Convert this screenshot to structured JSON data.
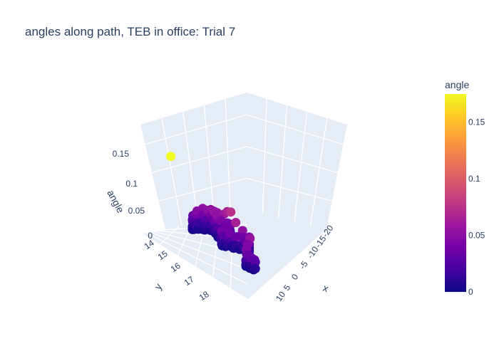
{
  "chart_data": {
    "type": "scatter3d",
    "title": "angles along path, TEB in office: Trial 7",
    "axes": {
      "x": {
        "label": "x",
        "ticks": [
          "-20",
          "-15",
          "-10",
          "-5",
          "0",
          "5",
          "10"
        ]
      },
      "y": {
        "label": "y",
        "ticks": [
          "14",
          "15",
          "16",
          "17",
          "18"
        ]
      },
      "z": {
        "label": "angle",
        "ticks": [
          "0",
          "0.05",
          "0.1",
          "0.15"
        ]
      }
    },
    "colorbar": {
      "title": "angle",
      "ticks": [
        "0",
        "0.05",
        "0.1",
        "0.15"
      ],
      "range": [
        0,
        0.175
      ]
    },
    "colorscale": [
      "#0d0887",
      "#46039f",
      "#7201a8",
      "#9c179e",
      "#bd3786",
      "#d8576b",
      "#ed7953",
      "#fb9f3a",
      "#fdca26",
      "#f0f921"
    ],
    "segments": [
      {
        "x0": -13.0,
        "y0": 14.0,
        "x1": -15.5,
        "y1": 14.0,
        "n": 10,
        "amin": 0.004,
        "amax": 0.03
      },
      {
        "x0": -15.5,
        "y0": 14.0,
        "x1": -15.5,
        "y1": 14.35,
        "n": 12,
        "amin": 0.01,
        "amax": 0.035
      },
      {
        "x0": -15.5,
        "y0": 14.35,
        "x1": -11.5,
        "y1": 14.35,
        "n": 12,
        "amin": 0.01,
        "amax": 0.05
      },
      {
        "x0": -11.5,
        "y0": 14.35,
        "x1": -8.0,
        "y1": 15.3,
        "n": 10,
        "amin": 0.015,
        "amax": 0.055
      },
      {
        "x0": -8.0,
        "y0": 15.3,
        "x1": -5.0,
        "y1": 15.3,
        "n": 8,
        "amin": 0.01,
        "amax": 0.045
      },
      {
        "x0": -5.0,
        "y0": 15.3,
        "x1": -5.0,
        "y1": 16.2,
        "n": 14,
        "amin": 0.005,
        "amax": 0.04
      },
      {
        "x0": -5.0,
        "y0": 16.2,
        "x1": 2.0,
        "y1": 16.2,
        "n": 14,
        "amin": 0.01,
        "amax": 0.04
      },
      {
        "x0": 2.0,
        "y0": 16.2,
        "x1": 4.5,
        "y1": 17.2,
        "n": 12,
        "amin": 0.005,
        "amax": 0.045
      },
      {
        "x0": 4.5,
        "y0": 17.2,
        "x1": 7.5,
        "y1": 17.3,
        "n": 10,
        "amin": 0.005,
        "amax": 0.035
      }
    ],
    "highlights": [
      {
        "x": -6.3,
        "y": 15.1,
        "angle": 0.065
      },
      {
        "x": -7.0,
        "y": 15.1,
        "angle": 0.058
      },
      {
        "x": -4.5,
        "y": 15.5,
        "angle": 0.075
      },
      {
        "x": -2.0,
        "y": 16.0,
        "angle": 0.065
      },
      {
        "x": 0.0,
        "y": 16.1,
        "angle": 0.052
      },
      {
        "x": -9.0,
        "y": 14.9,
        "angle": 0.055
      },
      {
        "x": -13.5,
        "y": 14.2,
        "angle": 0.052
      },
      {
        "x": 3.5,
        "y": 16.6,
        "angle": 0.055
      },
      {
        "x": -18.0,
        "y": 16.1,
        "angle": 0.175
      }
    ]
  }
}
